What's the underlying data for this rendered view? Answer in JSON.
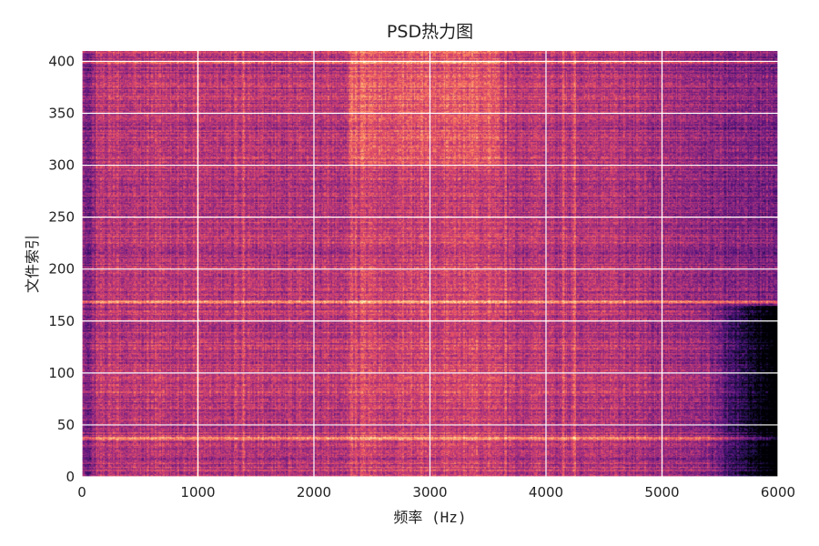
{
  "chart_data": {
    "type": "heatmap",
    "title": "PSD热力图",
    "xlabel": "频率 (Hz)",
    "ylabel": "文件索引",
    "xlim": [
      0,
      6000
    ],
    "ylim": [
      0,
      410
    ],
    "x_ticks": [
      0,
      1000,
      2000,
      3000,
      4000,
      5000,
      6000
    ],
    "y_ticks": [
      0,
      50,
      100,
      150,
      200,
      250,
      300,
      350,
      400
    ],
    "grid": true,
    "colormap": "magma",
    "grid_color": "#ffffff",
    "rows": 410,
    "freq_bins": 600,
    "features": {
      "low_power_region": {
        "freq_min": 5400,
        "freq_max": 6000,
        "index_max": 165
      },
      "bright_bands_index": [
        37,
        168,
        399
      ],
      "bright_lines_freq": [
        95,
        1000,
        1390,
        3650,
        4150,
        4250
      ],
      "hot_region": {
        "freq_min": 2300,
        "freq_max": 3600,
        "index_min": 300,
        "index_max": 410
      }
    }
  }
}
